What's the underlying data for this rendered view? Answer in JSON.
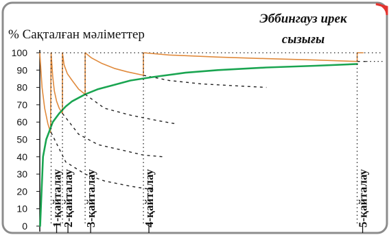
{
  "title_left": "% Сақталған мәліметтер",
  "title_right_line1": "Эббингауз ирек",
  "title_right_line2": "сызығы",
  "colors": {
    "frame": "#8c8c8c",
    "corner_accent": "#e3342f",
    "forgetting": "#e08a3c",
    "retention": "#1aa551",
    "dotted": "#222222",
    "text": "#111111"
  },
  "chart_data": {
    "type": "line",
    "ylim": [
      0,
      100
    ],
    "xlim": [
      0,
      100
    ],
    "yticks": [
      0,
      10,
      20,
      30,
      40,
      50,
      60,
      70,
      80,
      90,
      100
    ],
    "grid": false,
    "revisions": [
      {
        "label": "1-қайталау",
        "x": 3.5
      },
      {
        "label": "2-қайталау",
        "x": 7
      },
      {
        "label": "3-қайталау",
        "x": 14
      },
      {
        "label": "4-қайталау",
        "x": 32
      },
      {
        "label": "5-қайталау",
        "x": 98
      }
    ],
    "series": [
      {
        "style": "forgetting",
        "x": [
          0,
          0.7,
          1.5,
          2.5,
          3.3,
          3.5,
          4,
          4.5,
          5.2,
          6,
          7,
          7,
          7.5,
          8.5,
          10,
          12,
          14,
          14,
          16,
          19,
          23,
          27,
          32,
          32,
          40,
          55,
          70,
          85,
          98,
          98,
          100
        ],
        "y": [
          100,
          80,
          68,
          59,
          54,
          100,
          86,
          78,
          72,
          68,
          65,
          100,
          93,
          88,
          84,
          79,
          76,
          100,
          97,
          94,
          91,
          89,
          87,
          100,
          98.7,
          97.5,
          96.6,
          95.8,
          95,
          100,
          100
        ]
      },
      {
        "style": "retention",
        "x": [
          0.1,
          1,
          2,
          3,
          4,
          6,
          8,
          10,
          14,
          18,
          22,
          28,
          35,
          45,
          55,
          70,
          85,
          98
        ],
        "y": [
          0,
          40,
          50,
          55,
          60,
          65,
          69,
          72,
          76,
          79,
          81,
          84,
          86,
          88.5,
          90,
          91.5,
          92.5,
          93.5
        ]
      },
      {
        "style": "decay-dotted",
        "x": [
          3.5,
          8,
          14,
          20,
          28,
          35
        ],
        "y": [
          54,
          37,
          30,
          26,
          23,
          21
        ]
      },
      {
        "style": "decay-dotted",
        "x": [
          7,
          12,
          18,
          25,
          32,
          38
        ],
        "y": [
          65,
          53,
          47,
          44,
          41,
          40
        ]
      },
      {
        "style": "decay-dotted",
        "x": [
          14,
          20,
          28,
          36,
          42
        ],
        "y": [
          76,
          68,
          64,
          61,
          59
        ]
      },
      {
        "style": "decay-dotted",
        "x": [
          32,
          40,
          50,
          60,
          70
        ],
        "y": [
          87,
          84,
          82,
          81,
          80
        ]
      },
      {
        "style": "decay-dotted",
        "x": [
          98,
          101
        ],
        "y": [
          95,
          95
        ]
      }
    ]
  }
}
